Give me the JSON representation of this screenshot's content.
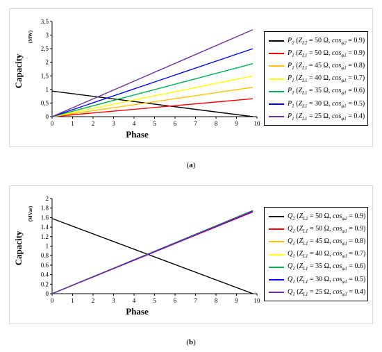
{
  "captions": {
    "a_label": "a",
    "b_label": "b"
  },
  "chart_data": [
    {
      "type": "line",
      "panel": "a",
      "xlabel": "Phase",
      "ylabel": "Capacity",
      "unit": "(MW)",
      "xlim": [
        0,
        10
      ],
      "ylim": [
        0,
        3.5
      ],
      "xticks": [
        "0",
        "1",
        "2",
        "3",
        "4",
        "5",
        "6",
        "7",
        "8",
        "9",
        "10"
      ],
      "yticks": [
        "0",
        "0,5",
        "1",
        "1,5",
        "2",
        "2,5",
        "3",
        "3,5"
      ],
      "ytick_values": [
        0,
        0.5,
        1,
        1.5,
        2,
        2.5,
        3,
        3.5
      ],
      "grid": false,
      "legend_position": "right",
      "series": [
        {
          "var": "P",
          "sub": "2",
          "z": "Z",
          "zsub": "L2",
          "zval": "50 Ω",
          "c": "cos",
          "csub": "φ2",
          "cval": "0.9",
          "color": "#000000",
          "x": [
            0,
            9.8
          ],
          "y": [
            0.94,
            0
          ]
        },
        {
          "var": "P",
          "sub": "1",
          "z": "Z",
          "zsub": "L1",
          "zval": "50 Ω",
          "c": "cos",
          "csub": "φ1",
          "cval": "0.9",
          "color": "#ff0000",
          "x": [
            0,
            9.8
          ],
          "y": [
            0,
            0.66
          ]
        },
        {
          "var": "P",
          "sub": "1",
          "z": "Z",
          "zsub": "L1",
          "zval": "45 Ω",
          "c": "cos",
          "csub": "φ1",
          "cval": "0.8",
          "color": "#ffc000",
          "x": [
            0,
            9.8
          ],
          "y": [
            0,
            1.08
          ]
        },
        {
          "var": "P",
          "sub": "1",
          "z": "Z",
          "zsub": "L1",
          "zval": "40 Ω",
          "c": "cos",
          "csub": "φ1",
          "cval": "0.7",
          "color": "#ffff00",
          "x": [
            0,
            9.8
          ],
          "y": [
            0,
            1.5
          ]
        },
        {
          "var": "P",
          "sub": "1",
          "z": "Z",
          "zsub": "L1",
          "zval": "35 Ω",
          "c": "cos",
          "csub": "φ1",
          "cval": "0.6",
          "color": "#00b050",
          "x": [
            0,
            9.8
          ],
          "y": [
            0,
            1.95
          ]
        },
        {
          "var": "P",
          "sub": "1",
          "z": "Z",
          "zsub": "L1",
          "zval": "30 Ω",
          "c": "cos",
          "csub": "φ1",
          "cval": "0.5",
          "color": "#0000ff",
          "x": [
            0,
            9.8
          ],
          "y": [
            0,
            2.5
          ]
        },
        {
          "var": "P",
          "sub": "1",
          "z": "Z",
          "zsub": "L1",
          "zval": "25 Ω",
          "c": "cos",
          "csub": "φ1",
          "cval": "0.4",
          "color": "#7030a0",
          "x": [
            0,
            9.8
          ],
          "y": [
            0,
            3.2
          ]
        }
      ]
    },
    {
      "type": "line",
      "panel": "b",
      "xlabel": "Phase",
      "ylabel": "Capacity",
      "unit": "(MVar)",
      "xlim": [
        0,
        10
      ],
      "ylim": [
        0,
        2
      ],
      "xticks": [
        "0",
        "1",
        "2",
        "3",
        "4",
        "5",
        "6",
        "7",
        "8",
        "9",
        "10"
      ],
      "yticks": [
        "0",
        "0.2",
        "0.4",
        "0.6",
        "0.8",
        "1",
        "1.2",
        "1.4",
        "1.6",
        "1.8",
        "2"
      ],
      "ytick_values": [
        0,
        0.2,
        0.4,
        0.6,
        0.8,
        1,
        1.2,
        1.4,
        1.6,
        1.8,
        2
      ],
      "grid": false,
      "legend_position": "right",
      "series": [
        {
          "var": "Q",
          "sub": "2",
          "z": "Z",
          "zsub": "L2",
          "zval": "50 Ω",
          "c": "cos",
          "csub": "φ2",
          "cval": "0.9",
          "color": "#000000",
          "x": [
            0,
            9.8
          ],
          "y": [
            1.58,
            0
          ]
        },
        {
          "var": "Q",
          "sub": "1",
          "z": "Z",
          "zsub": "L1",
          "zval": "50 Ω",
          "c": "cos",
          "csub": "φ1",
          "cval": "0.9",
          "color": "#ff0000",
          "x": [
            0,
            9.8
          ],
          "y": [
            0,
            1.72
          ]
        },
        {
          "var": "Q",
          "sub": "1",
          "z": "Z",
          "zsub": "L1",
          "zval": "45 Ω",
          "c": "cos",
          "csub": "φ1",
          "cval": "0.8",
          "color": "#ffc000",
          "x": [
            0,
            9.8
          ],
          "y": [
            0,
            1.74
          ]
        },
        {
          "var": "Q",
          "sub": "1",
          "z": "Z",
          "zsub": "L1",
          "zval": "40 Ω",
          "c": "cos",
          "csub": "φ1",
          "cval": "0.7",
          "color": "#ffff00",
          "x": [
            0,
            9.8
          ],
          "y": [
            0,
            1.74
          ]
        },
        {
          "var": "Q",
          "sub": "1",
          "z": "Z",
          "zsub": "L1",
          "zval": "35 Ω",
          "c": "cos",
          "csub": "φ1",
          "cval": "0.6",
          "color": "#00b050",
          "x": [
            0,
            9.8
          ],
          "y": [
            0,
            1.75
          ]
        },
        {
          "var": "Q",
          "sub": "1",
          "z": "Z",
          "zsub": "L1",
          "zval": "30 Ω",
          "c": "cos",
          "csub": "φ1",
          "cval": "0.5",
          "color": "#0000ff",
          "x": [
            0,
            9.8
          ],
          "y": [
            0,
            1.73
          ]
        },
        {
          "var": "Q",
          "sub": "1",
          "z": "Z",
          "zsub": "L1",
          "zval": "25 Ω",
          "c": "cos",
          "csub": "φ1",
          "cval": "0.4",
          "color": "#7030a0",
          "x": [
            0,
            9.8
          ],
          "y": [
            0,
            1.74
          ]
        }
      ]
    }
  ]
}
